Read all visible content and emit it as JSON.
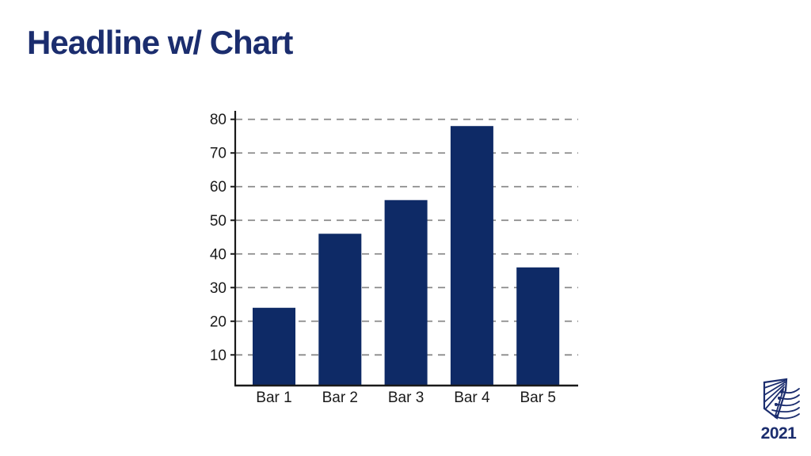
{
  "slide": {
    "headline": "Headline w/ Chart",
    "logo": {
      "year": "2021",
      "icon": "pennant-waves-logo"
    },
    "colors": {
      "headline": "#1b2d6e",
      "bar": "#0e2a66",
      "axis": "#1a1a1a",
      "gridline": "#8a8a8a",
      "label": "#1a1a1a",
      "logo": "#1b2d6e"
    }
  },
  "chart_data": {
    "type": "bar",
    "title": "",
    "categories": [
      "Bar 1",
      "Bar 2",
      "Bar 3",
      "Bar 4",
      "Bar 5"
    ],
    "values": [
      24,
      46,
      56,
      78,
      36
    ],
    "xlabel": "",
    "ylabel": "",
    "ylim": [
      0,
      82
    ],
    "yticks": [
      10,
      20,
      30,
      40,
      50,
      60,
      70,
      80
    ],
    "grid": "horizontal-dashed",
    "legend": "none"
  }
}
